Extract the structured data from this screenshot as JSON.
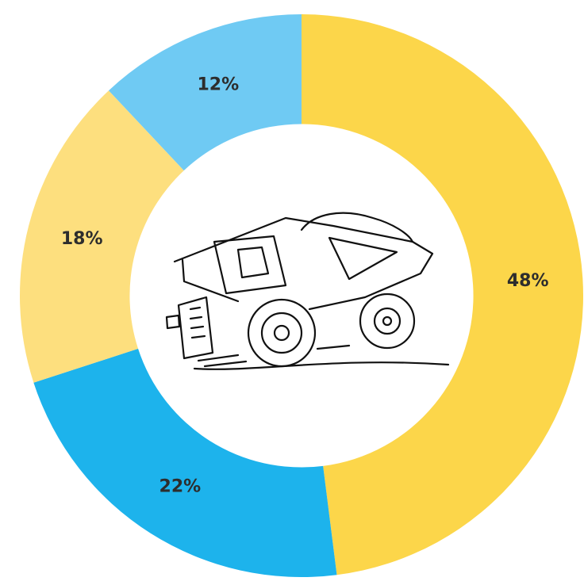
{
  "chart_data": {
    "type": "pie",
    "values": [
      48,
      22,
      18,
      12
    ],
    "value_labels": [
      "48%",
      "22%",
      "18%",
      "12%"
    ],
    "colors": [
      "#fcd64a",
      "#1db3ec",
      "#fddf7e",
      "#6fcaf3"
    ],
    "inner_radius_ratio": 0.61
  }
}
